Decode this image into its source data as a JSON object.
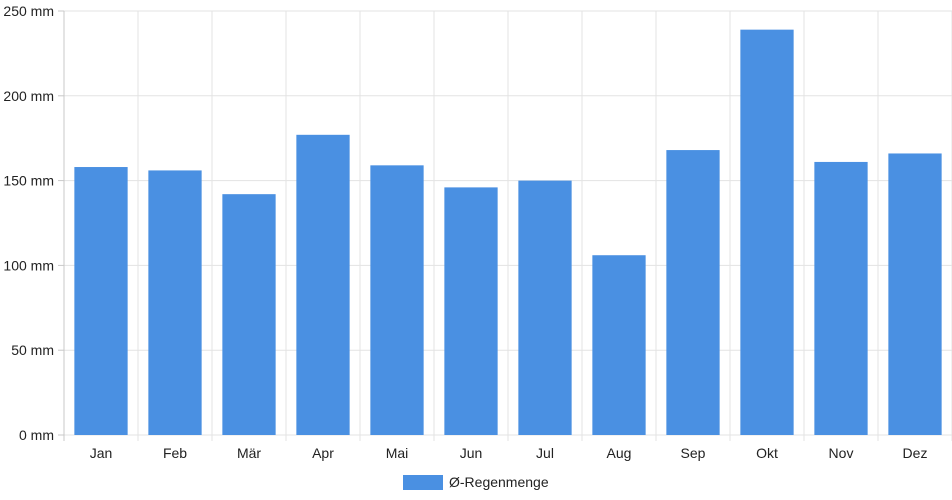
{
  "chart_data": {
    "type": "bar",
    "categories": [
      "Jan",
      "Feb",
      "Mär",
      "Apr",
      "Mai",
      "Jun",
      "Jul",
      "Aug",
      "Sep",
      "Okt",
      "Nov",
      "Dez"
    ],
    "series": [
      {
        "name": "Ø-Regenmenge",
        "values": [
          158,
          156,
          142,
          177,
          159,
          146,
          150,
          106,
          168,
          239,
          161,
          166
        ],
        "color": "#4a90e2"
      }
    ],
    "ylim": [
      0,
      250
    ],
    "yticks": [
      0,
      50,
      100,
      150,
      200,
      250
    ],
    "ytick_labels": [
      "0 mm",
      "50 mm",
      "100 mm",
      "150 mm",
      "200 mm",
      "250 mm"
    ],
    "grid": true,
    "legend_position": "bottom-center",
    "gridColor": "#e3e3e3"
  }
}
